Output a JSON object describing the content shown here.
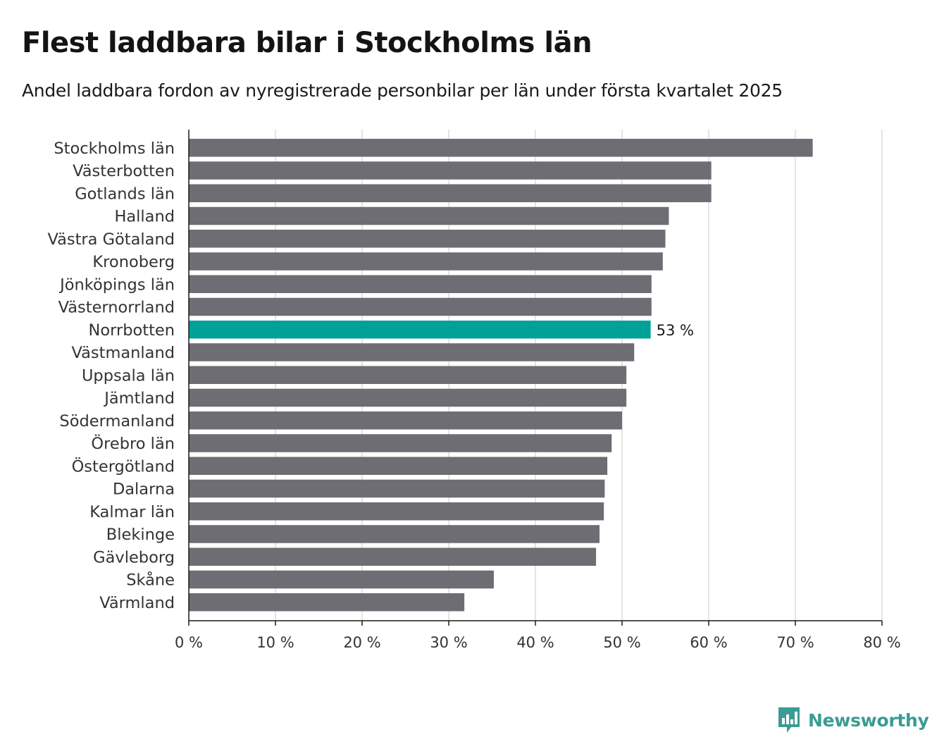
{
  "title": "Flest laddbara bilar i Stockholms län",
  "subtitle": "Andel laddbara fordon av nyregistrerade personbilar per län under första kvartalet 2025",
  "brand": {
    "name": "Newsworthy",
    "color": "#3a9c93",
    "icon": "newsworthy-chart-bubble-icon"
  },
  "chart_data": {
    "type": "bar",
    "orientation": "horizontal",
    "categories": [
      "Stockholms län",
      "Västerbotten",
      "Gotlands län",
      "Halland",
      "Västra Götaland",
      "Kronoberg",
      "Jönköpings län",
      "Västernorrland",
      "Norrbotten",
      "Västmanland",
      "Uppsala län",
      "Jämtland",
      "Södermanland",
      "Örebro län",
      "Östergötland",
      "Dalarna",
      "Kalmar län",
      "Blekinge",
      "Gävleborg",
      "Skåne",
      "Värmland"
    ],
    "values": [
      72.0,
      60.3,
      60.3,
      55.4,
      55.0,
      54.7,
      53.4,
      53.4,
      53.3,
      51.4,
      50.5,
      50.5,
      50.0,
      48.8,
      48.3,
      48.0,
      47.9,
      47.4,
      47.0,
      35.2,
      31.8
    ],
    "highlight": {
      "category": "Norrbotten",
      "label": "53 %",
      "color": "#00a298"
    },
    "bar_color": "#6e6d73",
    "xlim": [
      0,
      80
    ],
    "xticks": [
      0,
      10,
      20,
      30,
      40,
      50,
      60,
      70,
      80
    ],
    "xtick_labels": [
      "0 %",
      "10 %",
      "20 %",
      "30 %",
      "40 %",
      "50 %",
      "60 %",
      "70 %",
      "80 %"
    ],
    "xlabel": "",
    "ylabel": "",
    "grid": true
  }
}
